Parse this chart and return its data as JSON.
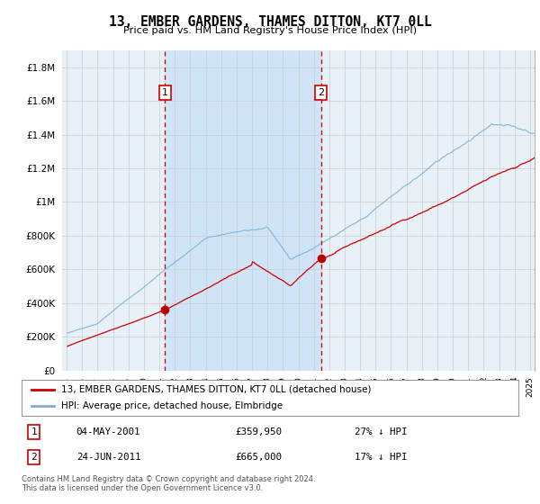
{
  "title": "13, EMBER GARDENS, THAMES DITTON, KT7 0LL",
  "subtitle": "Price paid vs. HM Land Registry's House Price Index (HPI)",
  "background_color": "#ffffff",
  "plot_bg_color": "#e8f0f8",
  "shade_color": "#d0e4f7",
  "grid_color": "#cccccc",
  "sale1_label": "04-MAY-2001",
  "sale1_price": 359950,
  "sale1_hpi_text": "27% ↓ HPI",
  "sale1_year": 2001.37,
  "sale2_label": "24-JUN-2011",
  "sale2_price": 665000,
  "sale2_hpi_text": "17% ↓ HPI",
  "sale2_year": 2011.46,
  "legend_line1": "13, EMBER GARDENS, THAMES DITTON, KT7 0LL (detached house)",
  "legend_line2": "HPI: Average price, detached house, Elmbridge",
  "footnote": "Contains HM Land Registry data © Crown copyright and database right 2024.\nThis data is licensed under the Open Government Licence v3.0.",
  "red_color": "#cc0000",
  "blue_color": "#7ab0d4",
  "ylim_max": 1900000,
  "yticks": [
    0,
    200000,
    400000,
    600000,
    800000,
    1000000,
    1200000,
    1400000,
    1600000,
    1800000
  ],
  "xstart": 1995,
  "xend": 2025
}
